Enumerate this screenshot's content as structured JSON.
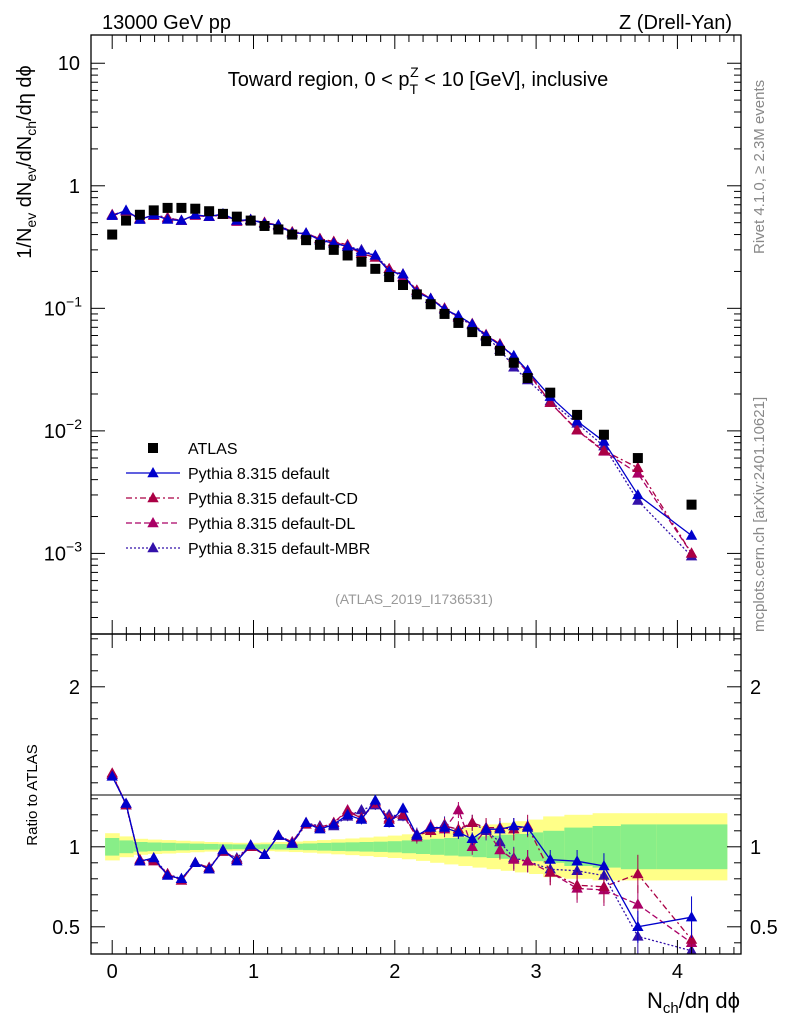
{
  "header": {
    "left": "13000 GeV pp",
    "right": "Z (Drell-Yan)"
  },
  "side_labels": {
    "rivet": "Rivet 4.1.0, ≥ 2.3M events",
    "mcplots": "mcplots.cern.ch [arXiv:2401.10621]"
  },
  "colors": {
    "atlas": "#000000",
    "default": "#0000cc",
    "cd": "#aa0044",
    "dl": "#aa0066",
    "mbr": "#3311aa",
    "band_inner": "#88ee88",
    "band_outer": "#ffff88"
  },
  "chart_data": [
    {
      "type": "scatter",
      "panel": "main",
      "title": "Toward region, 0 < p_T^Z < 10 [GeV], inclusive",
      "title_parts": {
        "pre": "Toward region, 0 < p",
        "sup": "Z",
        "sub": "T",
        "post": " < 10 [GeV], inclusive"
      },
      "ylabel": "1/N_ev dN_ev/dN_ch/dη dϕ",
      "ylabel_parts": [
        "1/N",
        "ev",
        " dN",
        "ev",
        "/dN",
        "ch",
        "/dη dϕ"
      ],
      "yscale": "log",
      "ylim": [
        0.00022,
        17
      ],
      "xlim": [
        -0.15,
        4.45
      ],
      "yticks": [
        {
          "value": 10,
          "base": "10",
          "exp": ""
        },
        {
          "value": 1,
          "base": "1",
          "exp": ""
        },
        {
          "value": 0.1,
          "base": "10",
          "exp": "−1"
        },
        {
          "value": 0.01,
          "base": "10",
          "exp": "−2"
        },
        {
          "value": 0.001,
          "base": "10",
          "exp": "−3"
        }
      ],
      "watermark": "(ATLAS_2019_I1736531)",
      "legend": [
        {
          "key": "atlas",
          "label": "ATLAS"
        },
        {
          "key": "default",
          "label": "Pythia 8.315 default"
        },
        {
          "key": "cd",
          "label": "Pythia 8.315 default-CD"
        },
        {
          "key": "dl",
          "label": "Pythia 8.315 default-DL"
        },
        {
          "key": "mbr",
          "label": "Pythia 8.315 default-MBR"
        }
      ],
      "x": [
        0.0,
        0.098,
        0.196,
        0.294,
        0.392,
        0.49,
        0.588,
        0.686,
        0.784,
        0.882,
        0.98,
        1.078,
        1.176,
        1.274,
        1.372,
        1.47,
        1.568,
        1.666,
        1.764,
        1.862,
        1.96,
        2.058,
        2.156,
        2.254,
        2.352,
        2.45,
        2.548,
        2.646,
        2.744,
        2.842,
        2.94,
        3.1,
        3.29,
        3.48,
        3.72,
        4.1
      ],
      "series": [
        {
          "key": "atlas",
          "name": "ATLAS",
          "marker": "square",
          "values": [
            0.4,
            0.52,
            0.58,
            0.63,
            0.66,
            0.66,
            0.65,
            0.62,
            0.59,
            0.56,
            0.52,
            0.47,
            0.44,
            0.4,
            0.36,
            0.33,
            0.3,
            0.27,
            0.24,
            0.21,
            0.18,
            0.155,
            0.13,
            0.108,
            0.09,
            0.076,
            0.064,
            0.054,
            0.045,
            0.036,
            0.027,
            0.0205,
            0.0135,
            0.0093,
            0.006,
            0.0025
          ]
        },
        {
          "key": "default",
          "name": "Pythia 8.315 default",
          "marker": "triangle",
          "dash": "",
          "values": [
            0.57,
            0.63,
            0.53,
            0.58,
            0.53,
            0.52,
            0.58,
            0.56,
            0.59,
            0.52,
            0.53,
            0.49,
            0.48,
            0.41,
            0.41,
            0.36,
            0.34,
            0.32,
            0.29,
            0.27,
            0.2,
            0.19,
            0.135,
            0.12,
            0.098,
            0.087,
            0.074,
            0.06,
            0.05,
            0.041,
            0.031,
            0.019,
            0.012,
            0.0082,
            0.003,
            0.0014
          ]
        },
        {
          "key": "cd",
          "name": "Pythia 8.315 default-CD",
          "marker": "triangle",
          "dash": "6,3,2,3",
          "values": [
            0.58,
            0.62,
            0.54,
            0.57,
            0.55,
            0.52,
            0.58,
            0.56,
            0.58,
            0.52,
            0.52,
            0.5,
            0.47,
            0.42,
            0.4,
            0.37,
            0.35,
            0.33,
            0.28,
            0.26,
            0.21,
            0.19,
            0.14,
            0.12,
            0.1,
            0.085,
            0.075,
            0.061,
            0.051,
            0.04,
            0.031,
            0.017,
            0.0102,
            0.0069,
            0.005,
            0.001
          ]
        },
        {
          "key": "dl",
          "name": "Pythia 8.315 default-DL",
          "marker": "triangle",
          "dash": "6,3",
          "values": [
            0.57,
            0.62,
            0.54,
            0.57,
            0.54,
            0.52,
            0.57,
            0.56,
            0.58,
            0.51,
            0.53,
            0.5,
            0.48,
            0.42,
            0.41,
            0.37,
            0.35,
            0.32,
            0.28,
            0.26,
            0.21,
            0.18,
            0.14,
            0.12,
            0.1,
            0.085,
            0.074,
            0.06,
            0.051,
            0.04,
            0.03,
            0.017,
            0.0101,
            0.0068,
            0.0045,
            0.001
          ]
        },
        {
          "key": "mbr",
          "name": "Pythia 8.315 default-MBR",
          "marker": "triangle",
          "dash": "2,2",
          "values": [
            0.58,
            0.62,
            0.53,
            0.58,
            0.55,
            0.52,
            0.58,
            0.56,
            0.58,
            0.52,
            0.53,
            0.5,
            0.47,
            0.41,
            0.41,
            0.37,
            0.34,
            0.32,
            0.3,
            0.27,
            0.21,
            0.18,
            0.14,
            0.12,
            0.1,
            0.084,
            0.073,
            0.059,
            0.046,
            0.033,
            0.026,
            0.0175,
            0.0115,
            0.0075,
            0.0027,
            0.00095
          ]
        }
      ]
    },
    {
      "type": "line",
      "panel": "ratio",
      "ylabel": "Ratio to ATLAS",
      "xlabel": "N_ch/dη dϕ",
      "xlabel_parts": [
        "N",
        "ch",
        "/dη dϕ"
      ],
      "ylim": [
        0.33,
        2.33
      ],
      "yticks": [
        "0.5",
        "1",
        "2"
      ],
      "xticks": [
        "0",
        "1",
        "2",
        "3",
        "4"
      ],
      "x": [
        0.0,
        0.098,
        0.196,
        0.294,
        0.392,
        0.49,
        0.588,
        0.686,
        0.784,
        0.882,
        0.98,
        1.078,
        1.176,
        1.274,
        1.372,
        1.47,
        1.568,
        1.666,
        1.764,
        1.862,
        1.96,
        2.058,
        2.156,
        2.254,
        2.352,
        2.45,
        2.548,
        2.646,
        2.744,
        2.842,
        2.94,
        3.1,
        3.29,
        3.48,
        3.72,
        4.1
      ],
      "band_edges": [
        -0.05,
        0.05,
        0.15,
        0.25,
        0.35,
        0.45,
        0.55,
        0.65,
        0.75,
        0.85,
        0.95,
        1.05,
        1.15,
        1.25,
        1.35,
        1.45,
        1.55,
        1.65,
        1.75,
        1.85,
        1.95,
        2.05,
        2.15,
        2.25,
        2.35,
        2.45,
        2.55,
        2.65,
        2.75,
        2.85,
        2.95,
        3.05,
        3.2,
        3.4,
        3.6,
        3.85,
        4.35
      ],
      "band_inner": [
        0.055,
        0.04,
        0.03,
        0.027,
        0.025,
        0.022,
        0.02,
        0.018,
        0.016,
        0.015,
        0.015,
        0.016,
        0.017,
        0.019,
        0.021,
        0.024,
        0.026,
        0.028,
        0.03,
        0.032,
        0.035,
        0.04,
        0.045,
        0.05,
        0.055,
        0.06,
        0.065,
        0.07,
        0.075,
        0.08,
        0.09,
        0.1,
        0.12,
        0.13,
        0.14,
        0.14
      ],
      "band_outer": [
        0.085,
        0.065,
        0.05,
        0.045,
        0.042,
        0.038,
        0.034,
        0.03,
        0.028,
        0.025,
        0.025,
        0.027,
        0.03,
        0.033,
        0.037,
        0.042,
        0.047,
        0.052,
        0.058,
        0.064,
        0.07,
        0.078,
        0.088,
        0.1,
        0.11,
        0.12,
        0.13,
        0.14,
        0.15,
        0.16,
        0.17,
        0.19,
        0.2,
        0.21,
        0.21,
        0.21
      ],
      "series": [
        {
          "key": "default",
          "values": [
            1.44,
            1.27,
            0.91,
            0.93,
            0.82,
            0.8,
            0.9,
            0.86,
            0.98,
            0.91,
            1.01,
            0.95,
            1.07,
            1.02,
            1.15,
            1.11,
            1.14,
            1.2,
            1.17,
            1.29,
            1.15,
            1.24,
            1.07,
            1.12,
            1.12,
            1.09,
            1.05,
            1.11,
            1.11,
            1.13,
            1.12,
            0.92,
            0.91,
            0.88,
            0.5,
            0.56
          ],
          "errors": [
            0.02,
            0.02,
            0.02,
            0.02,
            0.02,
            0.02,
            0.02,
            0.02,
            0.02,
            0.02,
            0.02,
            0.02,
            0.02,
            0.02,
            0.02,
            0.02,
            0.02,
            0.03,
            0.03,
            0.03,
            0.03,
            0.03,
            0.03,
            0.03,
            0.04,
            0.04,
            0.04,
            0.04,
            0.05,
            0.05,
            0.05,
            0.06,
            0.07,
            0.08,
            0.1,
            0.13
          ]
        },
        {
          "key": "cd",
          "values": [
            1.46,
            1.26,
            0.92,
            0.91,
            0.83,
            0.79,
            0.9,
            0.87,
            0.97,
            0.92,
            1.0,
            0.95,
            1.07,
            1.02,
            1.14,
            1.12,
            1.15,
            1.22,
            1.18,
            1.28,
            1.17,
            1.2,
            1.07,
            1.1,
            1.13,
            1.11,
            1.15,
            1.12,
            1.12,
            1.11,
            1.13,
            0.84,
            0.76,
            0.75,
            0.83,
            0.42
          ],
          "errors": [
            0.02,
            0.02,
            0.02,
            0.02,
            0.02,
            0.02,
            0.02,
            0.02,
            0.02,
            0.02,
            0.02,
            0.02,
            0.02,
            0.02,
            0.02,
            0.02,
            0.02,
            0.03,
            0.03,
            0.03,
            0.03,
            0.03,
            0.04,
            0.04,
            0.05,
            0.05,
            0.05,
            0.06,
            0.06,
            0.07,
            0.07,
            0.08,
            0.09,
            0.1,
            0.12,
            0.14
          ]
        },
        {
          "key": "dl",
          "values": [
            1.45,
            1.27,
            0.91,
            0.92,
            0.83,
            0.79,
            0.9,
            0.86,
            0.98,
            0.92,
            1.01,
            0.95,
            1.07,
            1.03,
            1.15,
            1.12,
            1.15,
            1.23,
            1.18,
            1.27,
            1.18,
            1.2,
            1.06,
            1.13,
            1.11,
            1.23,
            1.0,
            1.11,
            0.98,
            0.92,
            0.91,
            0.84,
            0.74,
            0.73,
            0.64,
            0.4
          ],
          "errors": [
            0.02,
            0.02,
            0.02,
            0.02,
            0.02,
            0.02,
            0.02,
            0.02,
            0.02,
            0.02,
            0.02,
            0.02,
            0.02,
            0.02,
            0.02,
            0.02,
            0.02,
            0.03,
            0.03,
            0.03,
            0.03,
            0.03,
            0.04,
            0.04,
            0.05,
            0.05,
            0.05,
            0.06,
            0.06,
            0.07,
            0.07,
            0.08,
            0.09,
            0.1,
            0.12,
            0.14
          ]
        },
        {
          "key": "mbr",
          "values": [
            1.45,
            1.26,
            0.91,
            0.93,
            0.83,
            0.8,
            0.9,
            0.87,
            0.97,
            0.93,
            1.01,
            0.95,
            1.07,
            1.03,
            1.15,
            1.13,
            1.13,
            1.19,
            1.23,
            1.26,
            1.2,
            1.19,
            1.08,
            1.1,
            1.14,
            1.1,
            1.15,
            1.1,
            1.03,
            0.93,
            0.91,
            0.86,
            0.85,
            0.82,
            0.44,
            0.35
          ],
          "errors": [
            0.02,
            0.02,
            0.02,
            0.02,
            0.02,
            0.02,
            0.02,
            0.02,
            0.02,
            0.02,
            0.02,
            0.02,
            0.02,
            0.02,
            0.02,
            0.02,
            0.02,
            0.03,
            0.03,
            0.03,
            0.03,
            0.03,
            0.04,
            0.04,
            0.05,
            0.05,
            0.05,
            0.06,
            0.06,
            0.07,
            0.07,
            0.08,
            0.09,
            0.1,
            0.12,
            0.14
          ]
        }
      ]
    }
  ]
}
